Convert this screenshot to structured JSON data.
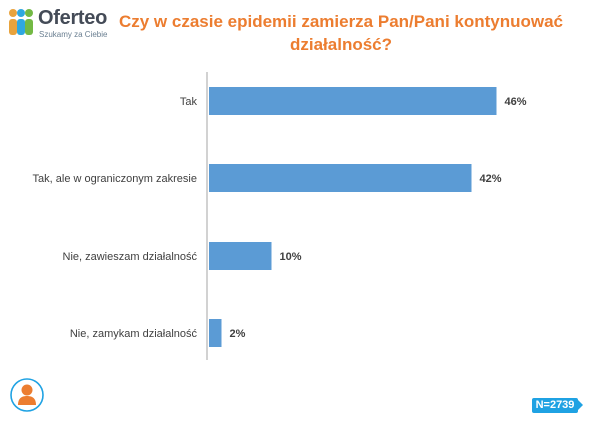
{
  "logo": {
    "name": "Oferteo",
    "tagline": "Szukamy za Ciebie"
  },
  "title": "Czy w czasie epidemii zamierza Pan/Pani kontynuować działalność?",
  "sample": "N=2739",
  "chart_data": {
    "type": "bar",
    "orientation": "horizontal",
    "title": "Czy w czasie epidemii zamierza Pan/Pani kontynuować działalność?",
    "categories": [
      "Tak",
      "Tak, ale w ograniczonym zakresie",
      "Nie, zawieszam działalność",
      "Nie, zamykam działalność"
    ],
    "values": [
      46,
      42,
      10,
      2
    ],
    "value_labels": [
      "46%",
      "42%",
      "10%",
      "2%"
    ],
    "xlim": [
      0,
      100
    ],
    "grid": false,
    "bar_color": "#5b9bd5"
  },
  "colors": {
    "title": "#ec7d30",
    "bar": "#5b9bd5",
    "badge": "#1fa2e3"
  }
}
